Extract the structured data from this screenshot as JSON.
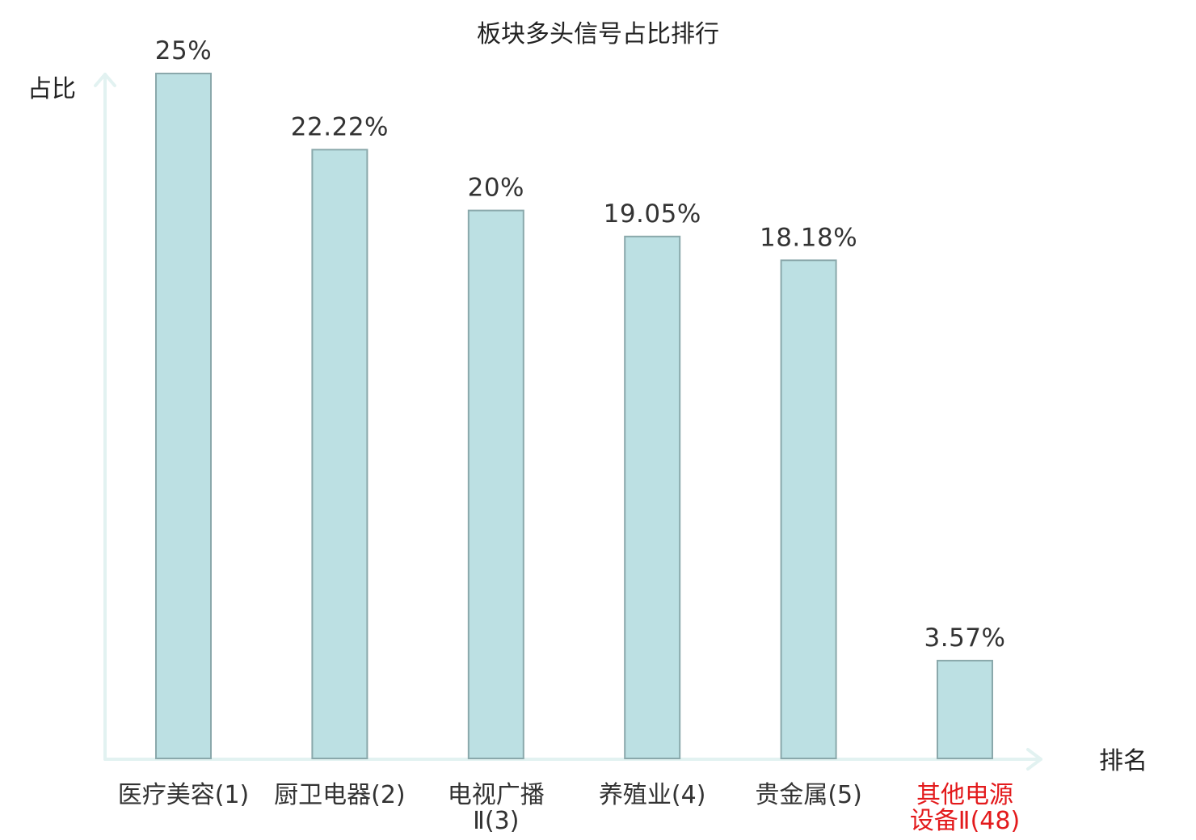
{
  "colors": {
    "bar_fill": "#bce0e3",
    "bar_stroke": "#8aa8ab",
    "axis": "#e2f2f1",
    "label_default": "#333333",
    "label_highlight": "#e31a1c"
  },
  "chart_data": {
    "type": "bar",
    "title": "板块多头信号占比排行",
    "xlabel": "排名",
    "ylabel": "占比",
    "ylim": [
      0,
      25
    ],
    "grid": false,
    "categories": [
      {
        "lines": [
          "医疗美容(1)"
        ],
        "highlight": false
      },
      {
        "lines": [
          "厨卫电器(2)"
        ],
        "highlight": false
      },
      {
        "lines": [
          "电视广播",
          "Ⅱ(3)"
        ],
        "highlight": false
      },
      {
        "lines": [
          "养殖业(4)"
        ],
        "highlight": false
      },
      {
        "lines": [
          "贵金属(5)"
        ],
        "highlight": false
      },
      {
        "lines": [
          "其他电源",
          "设备Ⅱ(48)"
        ],
        "highlight": true
      }
    ],
    "values": [
      25,
      22.22,
      20,
      19.05,
      18.18,
      3.57
    ],
    "value_labels": [
      "25%",
      "22.22%",
      "20%",
      "19.05%",
      "18.18%",
      "3.57%"
    ]
  }
}
